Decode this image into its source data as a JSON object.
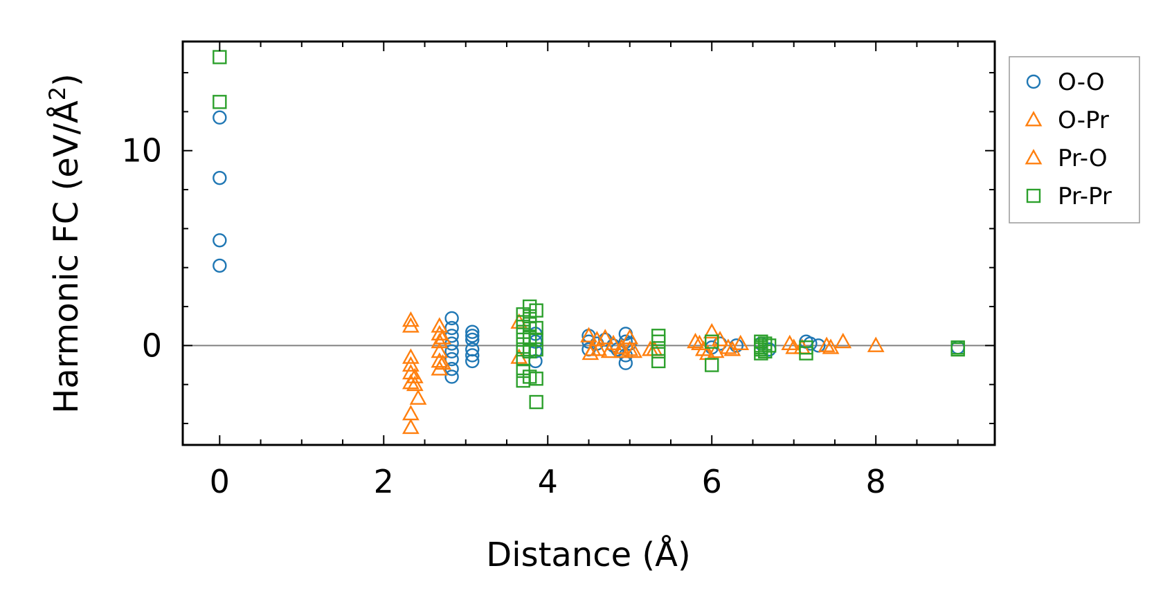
{
  "chart_data": {
    "type": "scatter",
    "title": "",
    "xlabel": "Distance (Å)",
    "ylabel_main": "Harmonic FC (eV/Å",
    "ylabel_sup": "2",
    "ylabel_end": ")",
    "xlim": [
      -0.45,
      9.45
    ],
    "ylim": [
      -5.1,
      15.6
    ],
    "x_ticks": [
      0,
      2,
      4,
      6,
      8
    ],
    "x_tick_labels": [
      "0",
      "2",
      "4",
      "6",
      "8"
    ],
    "y_ticks": [
      0,
      10
    ],
    "y_tick_labels": [
      "0",
      "10"
    ],
    "x_minor_step": 0.5,
    "y_minor_step": 2,
    "zero_line": true,
    "legend_position": "outside-right-top",
    "series": [
      {
        "name": "O-O",
        "marker": "circle",
        "color": "#1f77b4",
        "x": [
          0,
          0,
          0,
          0,
          2.83,
          2.83,
          2.83,
          2.83,
          2.83,
          2.83,
          2.83,
          2.83,
          3.08,
          3.08,
          3.08,
          3.08,
          3.08,
          3.08,
          3.85,
          3.85,
          3.85,
          3.85,
          4.5,
          4.5,
          4.5,
          4.6,
          4.7,
          4.8,
          4.85,
          4.95,
          4.95,
          4.95,
          4.95,
          5.0,
          6.0,
          6.1,
          6.3,
          6.6,
          6.7,
          7.15,
          7.2,
          7.3,
          9.0
        ],
        "y": [
          11.7,
          8.6,
          5.4,
          4.1,
          1.4,
          0.9,
          0.5,
          0.1,
          -0.3,
          -0.7,
          -1.2,
          -1.6,
          0.7,
          0.5,
          0.3,
          -0.2,
          -0.5,
          -0.8,
          0.6,
          0.2,
          -0.3,
          -0.8,
          0.5,
          0.2,
          -0.2,
          0.1,
          0.3,
          0.0,
          -0.2,
          0.6,
          0.2,
          -0.5,
          -0.9,
          0.1,
          -0.1,
          0.1,
          0.0,
          0.1,
          -0.2,
          0.2,
          0.1,
          0.0,
          -0.1
        ]
      },
      {
        "name": "O-Pr",
        "marker": "triangle",
        "color": "#ff7f0e",
        "x": [
          2.33,
          2.33,
          2.33,
          2.33,
          2.33,
          2.33,
          2.33,
          2.33,
          2.68,
          2.68,
          2.68,
          2.68,
          2.68,
          2.68,
          3.65,
          3.65,
          4.5,
          4.55,
          4.6,
          4.7,
          4.8,
          4.9,
          5.0,
          5.0,
          5.3,
          5.8,
          5.9,
          6.0,
          6.1,
          6.2,
          6.35,
          6.95,
          7.1,
          7.4,
          7.6,
          8.0
        ],
        "y": [
          1.3,
          1.0,
          -0.6,
          -1.0,
          -1.4,
          -1.9,
          -3.5,
          -4.2,
          1.0,
          0.6,
          0.2,
          -0.3,
          -0.8,
          -1.2,
          1.2,
          -0.6,
          0.5,
          -0.2,
          0.3,
          0.4,
          0.1,
          -0.3,
          0.4,
          -0.2,
          -0.2,
          0.2,
          -0.2,
          0.7,
          0.3,
          -0.1,
          0.1,
          0.1,
          -0.1,
          0.0,
          0.2,
          0.0
        ]
      },
      {
        "name": "Pr-O",
        "marker": "triangle",
        "color": "#ff7f0e",
        "x": [
          2.38,
          2.38,
          2.42,
          2.72,
          2.72,
          4.52,
          4.62,
          4.75,
          4.9,
          5.05,
          5.25,
          5.85,
          5.95,
          6.05,
          6.25,
          7.0,
          7.45
        ],
        "y": [
          -1.6,
          -2.0,
          -2.7,
          0.4,
          -0.9,
          -0.4,
          -0.2,
          -0.3,
          -0.1,
          -0.3,
          -0.2,
          0.1,
          -0.4,
          -0.3,
          -0.2,
          -0.1,
          -0.1
        ]
      },
      {
        "name": "Pr-Pr",
        "marker": "square",
        "color": "#2ca02c",
        "x": [
          0,
          0,
          3.7,
          3.7,
          3.7,
          3.7,
          3.7,
          3.7,
          3.7,
          3.7,
          3.78,
          3.78,
          3.78,
          3.78,
          3.78,
          3.78,
          3.86,
          3.86,
          3.86,
          3.86,
          3.86,
          3.86,
          5.35,
          5.35,
          5.35,
          5.35,
          6.0,
          6.0,
          6.6,
          6.6,
          6.6,
          6.6,
          6.6,
          6.65,
          6.65,
          6.7,
          7.15,
          7.15,
          9.0,
          9.0
        ],
        "y": [
          14.8,
          12.5,
          1.6,
          1.2,
          0.7,
          0.3,
          -0.2,
          -0.7,
          -1.3,
          -1.8,
          2.0,
          1.5,
          1.1,
          0.4,
          -0.3,
          -1.6,
          1.8,
          0.9,
          0.3,
          -0.2,
          -1.7,
          -2.9,
          0.5,
          0.2,
          -0.3,
          -0.8,
          0.2,
          -1.0,
          0.2,
          0.0,
          -0.1,
          -0.2,
          -0.4,
          0.1,
          -0.3,
          0.0,
          -0.1,
          -0.4,
          -0.1,
          -0.2
        ]
      }
    ]
  }
}
